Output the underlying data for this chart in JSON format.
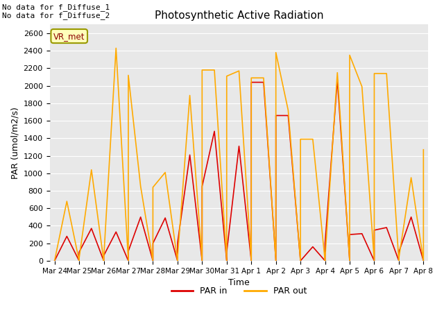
{
  "title": "Photosynthetic Active Radiation",
  "xlabel": "Time",
  "ylabel": "PAR (umol/m2/s)",
  "text_top_left": "No data for f_Diffuse_1\nNo data for f_Diffuse_2",
  "box_label": "VR_met",
  "legend_labels": [
    "PAR in",
    "PAR out"
  ],
  "color_par_in": "#dd0000",
  "color_par_out": "#ffaa00",
  "x_labels": [
    "Mar 24",
    "Mar 25",
    "Mar 26",
    "Mar 27",
    "Mar 28",
    "Mar 29",
    "Mar 30",
    "Mar 31",
    "Apr 1",
    "Apr 2",
    "Apr 3",
    "Apr 4",
    "Apr 5",
    "Apr 6",
    "Apr 7",
    "Apr 8"
  ],
  "par_in_x": [
    0,
    0.5,
    1,
    1,
    1.5,
    2,
    2,
    2.5,
    3,
    3,
    3.5,
    4,
    4,
    4.5,
    5,
    5,
    5.5,
    6,
    6,
    6.5,
    7,
    7,
    7.5,
    8,
    8,
    8.5,
    9,
    9,
    9.5,
    10,
    10,
    10.5,
    11,
    11,
    11.5,
    12,
    12,
    12.5,
    13,
    13,
    13.5,
    14,
    14,
    14.5,
    15,
    15
  ],
  "par_in_y": [
    0,
    280,
    0,
    100,
    370,
    0,
    60,
    330,
    0,
    110,
    500,
    0,
    200,
    490,
    0,
    200,
    1210,
    0,
    850,
    1480,
    0,
    100,
    1310,
    0,
    2040,
    2040,
    0,
    1660,
    1660,
    0,
    0,
    160,
    0,
    200,
    2070,
    0,
    300,
    310,
    0,
    350,
    380,
    0,
    100,
    500,
    0,
    0
  ],
  "par_out_x": [
    0,
    0.5,
    1,
    1,
    1.5,
    2,
    2,
    2.5,
    3,
    3,
    3.5,
    4,
    4,
    4.5,
    5,
    5,
    5.5,
    6,
    6,
    6.5,
    7,
    7,
    7.5,
    8,
    8,
    8.5,
    9,
    9,
    9.5,
    10,
    10,
    10.5,
    11,
    11,
    11.5,
    12,
    12,
    12.5,
    13,
    13,
    13.5,
    14,
    14,
    14.5,
    15,
    15
  ],
  "par_out_y": [
    0,
    680,
    0,
    30,
    1040,
    0,
    30,
    2430,
    0,
    2120,
    850,
    0,
    840,
    1010,
    0,
    30,
    1890,
    0,
    2180,
    2180,
    0,
    2110,
    2170,
    0,
    2090,
    2090,
    0,
    2380,
    1720,
    0,
    1390,
    1390,
    0,
    30,
    2150,
    0,
    2350,
    1990,
    0,
    2140,
    2140,
    0,
    30,
    950,
    0,
    1270
  ],
  "ylim": [
    0,
    2700
  ],
  "yticks": [
    0,
    200,
    400,
    600,
    800,
    1000,
    1200,
    1400,
    1600,
    1800,
    2000,
    2200,
    2400,
    2600
  ],
  "plot_bg": "#e8e8e8",
  "grid_color": "white",
  "fig_bg": "white"
}
